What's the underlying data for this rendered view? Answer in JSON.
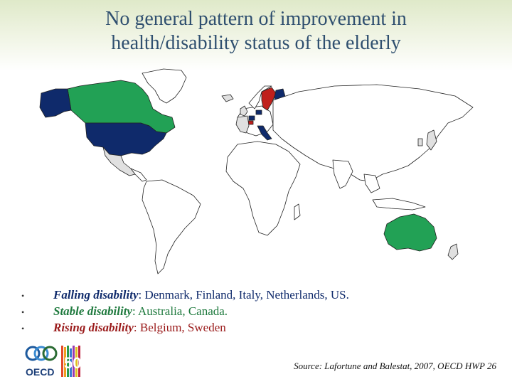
{
  "title": {
    "line1": "No general pattern of improvement in",
    "line2": "health/disability status of the elderly"
  },
  "legend_colors": {
    "falling": "#0f2a6b",
    "stable": "#22a155",
    "rising": "#c0201c",
    "no_data": "#ffffff",
    "other_oecd": "#e0e0e0"
  },
  "bullets": [
    {
      "label": "Falling disability",
      "text": ": Denmark, Finland, Italy, Netherlands, US.",
      "color": "#0f2a6b"
    },
    {
      "label": "Stable disability",
      "text": ": Australia, Canada.",
      "color": "#1f7a3e"
    },
    {
      "label": "Rising disability",
      "text": ":  Belgium, Sweden",
      "color": "#9a1a1a"
    }
  ],
  "logo": {
    "text": "OECD",
    "number": "50"
  },
  "source": "Source:  Lafortune and Balestat, 2007, OECD HWP 26"
}
